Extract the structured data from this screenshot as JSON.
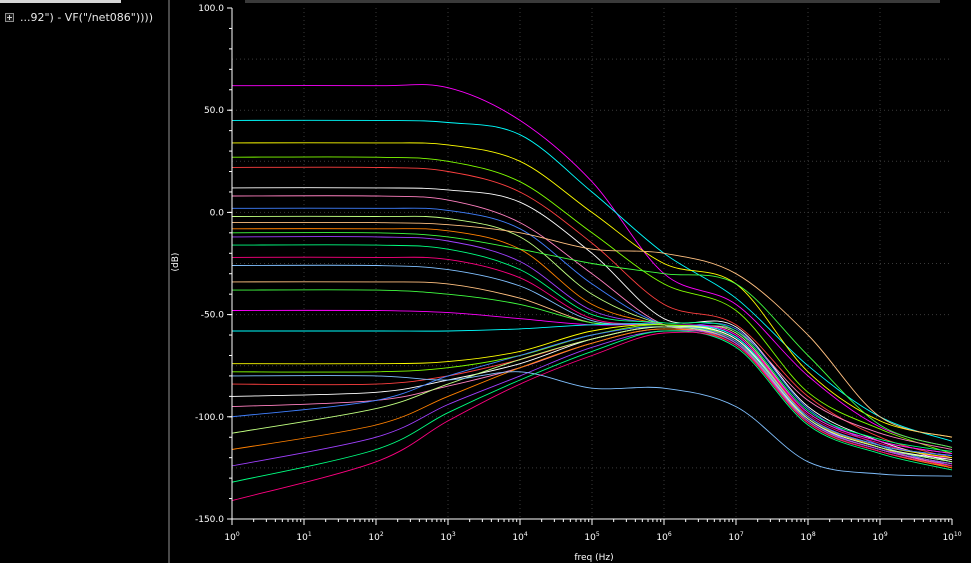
{
  "sidebar": {
    "trace_label": "...92\") - VF(\"/net086\"))))"
  },
  "colors": {
    "background": "#000000",
    "axis": "#ffffff",
    "grid": "#3a3a3a",
    "traces": [
      "#ff00ff",
      "#00ffff",
      "#ffff00",
      "#80ff00",
      "#ff4040",
      "#ffffff",
      "#ff80c0",
      "#4080ff",
      "#c0ff80",
      "#ff8000",
      "#a040ff",
      "#00ff80",
      "#ff0080",
      "#80c0ff",
      "#ffc080",
      "#40ff40"
    ]
  },
  "chart_data": {
    "type": "line",
    "title": "",
    "xlabel": "freq (Hz)",
    "ylabel": "(dB)",
    "x_scale": "log",
    "xlim": [
      1,
      10000000000
    ],
    "ylim": [
      -150,
      100
    ],
    "grid": true,
    "legend": "none",
    "x_tick_labels": [
      {
        "base": "10",
        "exp": "0"
      },
      {
        "base": "10",
        "exp": "1"
      },
      {
        "base": "10",
        "exp": "2"
      },
      {
        "base": "10",
        "exp": "3"
      },
      {
        "base": "10",
        "exp": "4"
      },
      {
        "base": "10",
        "exp": "5"
      },
      {
        "base": "10",
        "exp": "6"
      },
      {
        "base": "10",
        "exp": "7"
      },
      {
        "base": "10",
        "exp": "8"
      },
      {
        "base": "10",
        "exp": "9"
      },
      {
        "base": "10",
        "exp": "10"
      }
    ],
    "y_tick_labels": [
      "100.0",
      "50.0",
      "0.0",
      "-50.0",
      "-100.0",
      "-150.0"
    ],
    "y_tick_values": [
      100,
      50,
      0,
      -50,
      -100,
      -150
    ],
    "series": [
      {
        "x": [
          1,
          100,
          1000,
          10000,
          100000,
          1000000,
          10000000,
          100000000,
          1000000000,
          10000000000
        ],
        "y": [
          62,
          62,
          61,
          45,
          15,
          -30,
          -45,
          -80,
          -105,
          -115
        ]
      },
      {
        "x": [
          1,
          100,
          1000,
          10000,
          100000,
          1000000,
          10000000,
          100000000,
          1000000000,
          10000000000
        ],
        "y": [
          45,
          45,
          44,
          38,
          10,
          -20,
          -42,
          -75,
          -100,
          -112
        ]
      },
      {
        "x": [
          1,
          100,
          1000,
          10000,
          100000,
          1000000,
          10000000,
          100000000,
          1000000000,
          10000000000
        ],
        "y": [
          34,
          34,
          33,
          25,
          0,
          -25,
          -35,
          -78,
          -102,
          -110
        ]
      },
      {
        "x": [
          1,
          100,
          1000,
          10000,
          100000,
          1000000,
          10000000,
          100000000,
          1000000000,
          10000000000
        ],
        "y": [
          27,
          27,
          25,
          15,
          -10,
          -35,
          -48,
          -88,
          -106,
          -118
        ]
      },
      {
        "x": [
          1,
          100,
          1000,
          10000,
          100000,
          1000000,
          10000000,
          100000000,
          1000000000,
          10000000000
        ],
        "y": [
          22,
          22,
          20,
          10,
          -15,
          -45,
          -55,
          -90,
          -110,
          -120
        ]
      },
      {
        "x": [
          1,
          100,
          1000,
          10000,
          100000,
          1000000,
          10000000,
          100000000,
          1000000000,
          10000000000
        ],
        "y": [
          12,
          12,
          11,
          5,
          -20,
          -52,
          -56,
          -95,
          -112,
          -122
        ]
      },
      {
        "x": [
          1,
          100,
          1000,
          10000,
          100000,
          1000000,
          10000000,
          100000000,
          1000000000,
          10000000000
        ],
        "y": [
          8,
          8,
          6,
          -5,
          -30,
          -55,
          -58,
          -92,
          -108,
          -116
        ]
      },
      {
        "x": [
          1,
          100,
          1000,
          10000,
          100000,
          1000000,
          10000000,
          100000000,
          1000000000,
          10000000000
        ],
        "y": [
          2,
          2,
          1,
          -8,
          -35,
          -55,
          -57,
          -96,
          -114,
          -124
        ]
      },
      {
        "x": [
          1,
          100,
          1000,
          10000,
          100000,
          1000000,
          10000000,
          100000000,
          1000000000,
          10000000000
        ],
        "y": [
          -2,
          -2,
          -3,
          -12,
          -40,
          -55,
          -59,
          -98,
          -112,
          -118
        ]
      },
      {
        "x": [
          1,
          100,
          1000,
          10000,
          100000,
          1000000,
          10000000,
          100000000,
          1000000000,
          10000000000
        ],
        "y": [
          -8,
          -8,
          -9,
          -18,
          -45,
          -55,
          -60,
          -100,
          -115,
          -125
        ]
      },
      {
        "x": [
          1,
          100,
          1000,
          10000,
          100000,
          1000000,
          10000000,
          100000000,
          1000000000,
          10000000000
        ],
        "y": [
          -12,
          -12,
          -14,
          -24,
          -48,
          -55,
          -62,
          -101,
          -116,
          -120
        ]
      },
      {
        "x": [
          1,
          100,
          1000,
          10000,
          100000,
          1000000,
          10000000,
          100000000,
          1000000000,
          10000000000
        ],
        "y": [
          -16,
          -16,
          -18,
          -28,
          -50,
          -54,
          -58,
          -97,
          -111,
          -117
        ]
      },
      {
        "x": [
          1,
          100,
          1000,
          10000,
          100000,
          1000000,
          10000000,
          100000000,
          1000000000,
          10000000000
        ],
        "y": [
          -22,
          -22,
          -23,
          -32,
          -52,
          -55,
          -60,
          -99,
          -113,
          -121
        ]
      },
      {
        "x": [
          1,
          100,
          1000,
          10000,
          100000,
          1000000,
          10000000,
          100000000,
          1000000000,
          10000000000
        ],
        "y": [
          -26,
          -26,
          -28,
          -36,
          -53,
          -55,
          -61,
          -100,
          -114,
          -119
        ]
      },
      {
        "x": [
          1,
          100,
          1000,
          10000,
          100000,
          1000000,
          10000000,
          100000000,
          1000000000,
          10000000000
        ],
        "y": [
          -34,
          -34,
          -35,
          -42,
          -54,
          -55,
          -62,
          -102,
          -116,
          -123
        ]
      },
      {
        "x": [
          1,
          100,
          1000,
          10000,
          100000,
          1000000,
          10000000,
          100000000,
          1000000000,
          10000000000
        ],
        "y": [
          -38,
          -38,
          -40,
          -45,
          -54,
          -55,
          -63,
          -103,
          -117,
          -124
        ]
      },
      {
        "x": [
          1,
          100,
          1000,
          10000,
          100000,
          1000000,
          10000000,
          100000000,
          1000000000,
          10000000000
        ],
        "y": [
          -48,
          -48,
          -49,
          -52,
          -55,
          -55,
          -60,
          -98,
          -112,
          -118
        ]
      },
      {
        "x": [
          1,
          100,
          1000,
          10000,
          100000,
          1000000,
          10000000,
          100000000,
          1000000000,
          10000000000
        ],
        "y": [
          -58,
          -58,
          -58,
          -57,
          -55,
          -55,
          -61,
          -101,
          -115,
          -122
        ]
      },
      {
        "x": [
          1,
          100,
          1000,
          10000,
          100000,
          1000000,
          10000000,
          100000000,
          1000000000,
          10000000000
        ],
        "y": [
          -74,
          -74,
          -73,
          -68,
          -58,
          -55,
          -62,
          -100,
          -114,
          -120
        ]
      },
      {
        "x": [
          1,
          100,
          1000,
          10000,
          100000,
          1000000,
          10000000,
          100000000,
          1000000000,
          10000000000
        ],
        "y": [
          -78,
          -78,
          -76,
          -70,
          -60,
          -55,
          -63,
          -102,
          -116,
          -123
        ]
      },
      {
        "x": [
          1,
          100,
          1000,
          10000,
          100000,
          1000000,
          10000000,
          100000000,
          1000000000,
          10000000000
        ],
        "y": [
          -84,
          -84,
          -80,
          -72,
          -62,
          -56,
          -64,
          -103,
          -117,
          -125
        ]
      },
      {
        "x": [
          1,
          100,
          1000,
          10000,
          100000,
          1000000,
          10000000,
          100000000,
          1000000000,
          10000000000
        ],
        "y": [
          -90,
          -88,
          -82,
          -74,
          -62,
          -56,
          -62,
          -101,
          -115,
          -121
        ]
      },
      {
        "x": [
          1,
          100,
          1000,
          10000,
          100000,
          1000000,
          10000000,
          100000000,
          1000000000,
          10000000000
        ],
        "y": [
          -95,
          -92,
          -85,
          -76,
          -64,
          -57,
          -64,
          -102,
          -116,
          -124
        ]
      },
      {
        "x": [
          1,
          100,
          1000,
          10000,
          100000,
          1000000,
          10000000,
          100000000,
          1000000000,
          10000000000
        ],
        "y": [
          -100,
          -92,
          -80,
          -70,
          -60,
          -56,
          -63,
          -100,
          -114,
          -119
        ]
      },
      {
        "x": [
          1,
          100,
          1000,
          10000,
          100000,
          1000000,
          10000000,
          100000000,
          1000000000,
          10000000000
        ],
        "y": [
          -108,
          -96,
          -84,
          -72,
          -62,
          -56,
          -64,
          -101,
          -115,
          -122
        ]
      },
      {
        "x": [
          1,
          100,
          1000,
          10000,
          100000,
          1000000,
          10000000,
          100000000,
          1000000000,
          10000000000
        ],
        "y": [
          -116,
          -104,
          -90,
          -76,
          -64,
          -57,
          -65,
          -103,
          -117,
          -125
        ]
      },
      {
        "x": [
          1,
          100,
          1000,
          10000,
          100000,
          1000000,
          10000000,
          100000000,
          1000000000,
          10000000000
        ],
        "y": [
          -124,
          -110,
          -94,
          -80,
          -66,
          -58,
          -64,
          -102,
          -116,
          -123
        ]
      },
      {
        "x": [
          1,
          100,
          1000,
          10000,
          100000,
          1000000,
          10000000,
          100000000,
          1000000000,
          10000000000
        ],
        "y": [
          -132,
          -116,
          -98,
          -82,
          -68,
          -58,
          -66,
          -104,
          -118,
          -126
        ]
      },
      {
        "x": [
          1,
          100,
          1000,
          10000,
          100000,
          1000000,
          10000000,
          100000000,
          1000000000,
          10000000000
        ],
        "y": [
          -141,
          -122,
          -102,
          -84,
          -70,
          -59,
          -65,
          -103,
          -117,
          -124
        ]
      },
      {
        "x": [
          1,
          100,
          1000,
          10000,
          100000,
          1000000,
          10000000,
          100000000,
          1000000000,
          10000000000
        ],
        "y": [
          -80,
          -80,
          -82,
          -78,
          -86,
          -86,
          -95,
          -122,
          -128,
          -129
        ]
      },
      {
        "x": [
          1,
          100,
          1000,
          10000,
          100000,
          1000000,
          10000000,
          100000000,
          1000000000,
          10000000000
        ],
        "y": [
          -5,
          -5,
          -6,
          -10,
          -18,
          -20,
          -30,
          -60,
          -100,
          -110
        ]
      },
      {
        "x": [
          1,
          100,
          1000,
          10000,
          100000,
          1000000,
          10000000,
          100000000,
          1000000000,
          10000000000
        ],
        "y": [
          -10,
          -10,
          -12,
          -18,
          -25,
          -30,
          -35,
          -70,
          -104,
          -115
        ]
      }
    ]
  }
}
